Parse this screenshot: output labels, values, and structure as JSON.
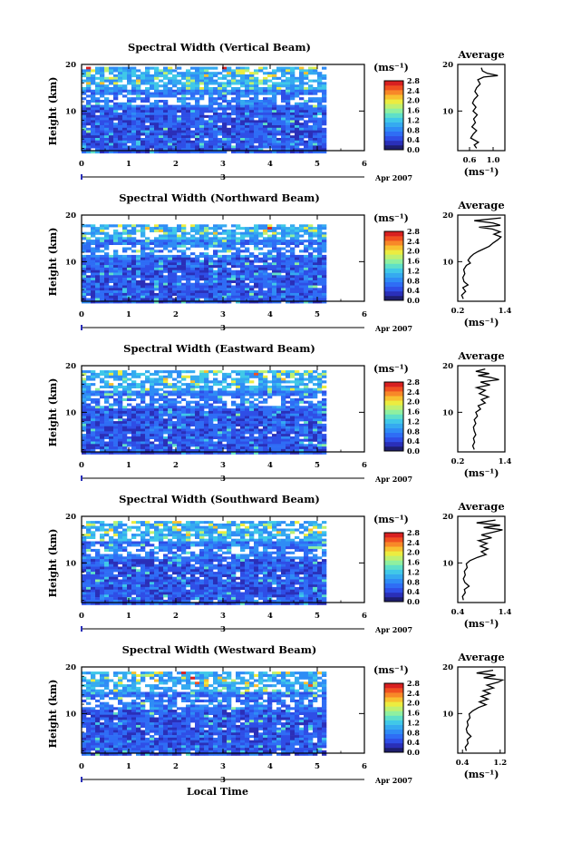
{
  "chart_data": [
    {
      "type": "heatmap",
      "title": "Spectral Width (Vertical Beam)",
      "ylabel": "Height (km)",
      "xlim": [
        0,
        6
      ],
      "ylim": [
        1.5,
        20
      ],
      "xticks": [
        "0",
        "1",
        "2",
        "3",
        "4",
        "5",
        "6"
      ],
      "yticks": [
        "10",
        "20"
      ],
      "date_axis": {
        "ticks": [
          "3"
        ],
        "label": "Apr 2007"
      },
      "colorbar": {
        "unit": "(ms⁻¹)",
        "labels": [
          "2.8",
          "2.4",
          "2.0",
          "1.6",
          "1.2",
          "0.8",
          "0.4",
          "0.0"
        ],
        "range": [
          0,
          2.8
        ]
      },
      "data_extent": {
        "x": [
          0,
          5.1
        ],
        "y": [
          1.5,
          19.5
        ]
      },
      "average": {
        "title": "Average",
        "unit": "(ms⁻¹)",
        "xticks": [
          "0.6",
          "1.0"
        ],
        "xlim": [
          0.4,
          1.2
        ],
        "yticks": [
          "10",
          "20"
        ],
        "profile": [
          [
            0.72,
            2
          ],
          [
            0.68,
            2.7
          ],
          [
            0.75,
            3.3
          ],
          [
            0.62,
            4.2
          ],
          [
            0.66,
            5
          ],
          [
            0.72,
            5.8
          ],
          [
            0.64,
            6.6
          ],
          [
            0.7,
            7.5
          ],
          [
            0.67,
            8.3
          ],
          [
            0.73,
            9.2
          ],
          [
            0.66,
            10
          ],
          [
            0.71,
            10.8
          ],
          [
            0.65,
            11.7
          ],
          [
            0.68,
            12.5
          ],
          [
            0.74,
            13.3
          ],
          [
            0.69,
            14.2
          ],
          [
            0.72,
            15
          ],
          [
            0.78,
            15.8
          ],
          [
            0.74,
            16.7
          ],
          [
            0.84,
            17.3
          ],
          [
            1.08,
            17.6
          ],
          [
            0.9,
            18.1
          ],
          [
            0.82,
            18.6
          ],
          [
            0.8,
            19.3
          ]
        ]
      }
    },
    {
      "type": "heatmap",
      "title": "Spectral Width (Northward Beam)",
      "ylabel": "Height (km)",
      "xlim": [
        0,
        6
      ],
      "ylim": [
        1.5,
        20
      ],
      "xticks": [
        "0",
        "1",
        "2",
        "3",
        "4",
        "5",
        "6"
      ],
      "yticks": [
        "10",
        "20"
      ],
      "date_axis": {
        "ticks": [
          "3"
        ],
        "label": "Apr 2007"
      },
      "colorbar": {
        "unit": "(ms⁻¹)",
        "labels": [
          "2.8",
          "2.4",
          "2.0",
          "1.6",
          "1.2",
          "0.8",
          "0.4",
          "0.0"
        ],
        "range": [
          0,
          2.8
        ]
      },
      "data_extent": {
        "x": [
          0,
          5.1
        ],
        "y": [
          1.5,
          18
        ]
      },
      "average": {
        "title": "Average",
        "unit": "(ms⁻¹)",
        "xticks": [
          "0.2",
          "1.4"
        ],
        "xlim": [
          0.2,
          1.4
        ],
        "yticks": [
          "10",
          "20"
        ],
        "profile": [
          [
            0.34,
            2
          ],
          [
            0.3,
            2.8
          ],
          [
            0.4,
            3.6
          ],
          [
            0.33,
            4.4
          ],
          [
            0.46,
            5
          ],
          [
            0.36,
            5.7
          ],
          [
            0.33,
            6.6
          ],
          [
            0.38,
            7.4
          ],
          [
            0.35,
            8.3
          ],
          [
            0.42,
            9.2
          ],
          [
            0.52,
            9.7
          ],
          [
            0.46,
            10.3
          ],
          [
            0.52,
            11
          ],
          [
            0.6,
            11.6
          ],
          [
            0.72,
            12.2
          ],
          [
            0.85,
            12.7
          ],
          [
            1.0,
            13.3
          ],
          [
            1.1,
            14
          ],
          [
            1.22,
            14.7
          ],
          [
            1.3,
            15.3
          ],
          [
            1.12,
            15.9
          ],
          [
            1.28,
            16.4
          ],
          [
            1.08,
            17
          ],
          [
            0.74,
            17.4
          ],
          [
            1.28,
            17.8
          ],
          [
            1.1,
            18.3
          ],
          [
            0.62,
            18.8
          ],
          [
            1.3,
            19.4
          ]
        ]
      }
    },
    {
      "type": "heatmap",
      "title": "Spectral Width (Eastward Beam)",
      "ylabel": "Height (km)",
      "xlim": [
        0,
        6
      ],
      "ylim": [
        1.5,
        20
      ],
      "xticks": [
        "0",
        "1",
        "2",
        "3",
        "4",
        "5",
        "6"
      ],
      "yticks": [
        "10",
        "20"
      ],
      "date_axis": {
        "ticks": [
          "3"
        ],
        "label": "Apr 2007"
      },
      "colorbar": {
        "unit": "(ms⁻¹)",
        "labels": [
          "2.8",
          "2.4",
          "2.0",
          "1.6",
          "1.2",
          "0.8",
          "0.4",
          "0.0"
        ],
        "range": [
          0,
          2.8
        ]
      },
      "data_extent": {
        "x": [
          0,
          5.1
        ],
        "y": [
          1.5,
          19
        ]
      },
      "average": {
        "title": "Average",
        "unit": "(ms⁻¹)",
        "xticks": [
          "0.2",
          "1.4"
        ],
        "xlim": [
          0.2,
          1.4
        ],
        "yticks": [
          "10",
          "20"
        ],
        "profile": [
          [
            0.62,
            2
          ],
          [
            0.58,
            2.8
          ],
          [
            0.63,
            3.6
          ],
          [
            0.6,
            4.4
          ],
          [
            0.66,
            5.2
          ],
          [
            0.62,
            6
          ],
          [
            0.6,
            6.8
          ],
          [
            0.66,
            7.6
          ],
          [
            0.62,
            8.4
          ],
          [
            0.7,
            9.2
          ],
          [
            0.66,
            10
          ],
          [
            0.78,
            10.7
          ],
          [
            0.72,
            11.4
          ],
          [
            0.9,
            12
          ],
          [
            0.8,
            12.7
          ],
          [
            0.98,
            13.3
          ],
          [
            0.75,
            14
          ],
          [
            0.9,
            14.7
          ],
          [
            0.68,
            15.3
          ],
          [
            1.02,
            15.9
          ],
          [
            0.78,
            16.5
          ],
          [
            1.25,
            17
          ],
          [
            1.02,
            17.5
          ],
          [
            0.72,
            17.9
          ],
          [
            1.0,
            18.3
          ],
          [
            0.66,
            18.8
          ],
          [
            0.9,
            19.3
          ]
        ]
      }
    },
    {
      "type": "heatmap",
      "title": "Spectral Width (Southward Beam)",
      "ylabel": "Height (km)",
      "xlim": [
        0,
        6
      ],
      "ylim": [
        1.5,
        20
      ],
      "xticks": [
        "0",
        "1",
        "2",
        "3",
        "4",
        "5",
        "6"
      ],
      "yticks": [
        "10",
        "20"
      ],
      "date_axis": {
        "ticks": [
          "3"
        ],
        "label": "Apr 2007"
      },
      "colorbar": {
        "unit": "(ms⁻¹)",
        "labels": [
          "2.8",
          "2.4",
          "2.0",
          "1.6",
          "1.2",
          "0.8",
          "0.4",
          "0.0"
        ],
        "range": [
          0,
          2.8
        ]
      },
      "data_extent": {
        "x": [
          0,
          5.1
        ],
        "y": [
          1.5,
          19
        ]
      },
      "average": {
        "title": "Average",
        "unit": "(ms⁻¹)",
        "xticks": [
          "0.4",
          "1.4"
        ],
        "xlim": [
          0.4,
          1.4
        ],
        "yticks": [
          "10",
          "20"
        ],
        "profile": [
          [
            0.52,
            2
          ],
          [
            0.5,
            2.8
          ],
          [
            0.56,
            3.6
          ],
          [
            0.54,
            4.3
          ],
          [
            0.64,
            5
          ],
          [
            0.55,
            5.8
          ],
          [
            0.52,
            6.6
          ],
          [
            0.56,
            7.4
          ],
          [
            0.54,
            8.2
          ],
          [
            0.6,
            9
          ],
          [
            0.58,
            9.8
          ],
          [
            0.66,
            10.5
          ],
          [
            0.82,
            11.2
          ],
          [
            1.0,
            11.8
          ],
          [
            0.9,
            12.4
          ],
          [
            1.04,
            13
          ],
          [
            0.88,
            13.6
          ],
          [
            1.02,
            14.2
          ],
          [
            0.84,
            14.8
          ],
          [
            1.12,
            15.4
          ],
          [
            0.9,
            16
          ],
          [
            1.15,
            16.6
          ],
          [
            1.35,
            17.1
          ],
          [
            0.95,
            17.6
          ],
          [
            1.3,
            18.1
          ],
          [
            0.8,
            18.6
          ],
          [
            1.2,
            19.2
          ]
        ]
      }
    },
    {
      "type": "heatmap",
      "title": "Spectral Width (Westward Beam)",
      "ylabel": "Height (km)",
      "xlabel": "Local Time",
      "xlim": [
        0,
        6
      ],
      "ylim": [
        1.5,
        20
      ],
      "xticks": [
        "0",
        "1",
        "2",
        "3",
        "4",
        "5",
        "6"
      ],
      "yticks": [
        "10",
        "20"
      ],
      "date_axis": {
        "ticks": [
          "3"
        ],
        "label": "Apr 2007"
      },
      "colorbar": {
        "unit": "(ms⁻¹)",
        "labels": [
          "2.8",
          "2.4",
          "2.0",
          "1.6",
          "1.2",
          "0.8",
          "0.4",
          "0.0"
        ],
        "range": [
          0,
          2.8
        ]
      },
      "data_extent": {
        "x": [
          0,
          5.1
        ],
        "y": [
          1.5,
          19
        ]
      },
      "average": {
        "title": "Average",
        "unit": "(ms⁻¹)",
        "xticks": [
          "0.4",
          "1.2"
        ],
        "xlim": [
          0.3,
          1.3
        ],
        "yticks": [
          "10",
          "20"
        ],
        "profile": [
          [
            0.48,
            2
          ],
          [
            0.46,
            2.8
          ],
          [
            0.52,
            3.6
          ],
          [
            0.5,
            4.4
          ],
          [
            0.58,
            5.1
          ],
          [
            0.5,
            5.9
          ],
          [
            0.48,
            6.7
          ],
          [
            0.52,
            7.5
          ],
          [
            0.5,
            8.3
          ],
          [
            0.56,
            9.1
          ],
          [
            0.54,
            9.9
          ],
          [
            0.62,
            10.6
          ],
          [
            0.74,
            11.3
          ],
          [
            0.9,
            11.9
          ],
          [
            0.76,
            12.5
          ],
          [
            0.94,
            13.1
          ],
          [
            0.8,
            13.7
          ],
          [
            0.98,
            14.3
          ],
          [
            0.84,
            14.9
          ],
          [
            1.06,
            15.5
          ],
          [
            0.92,
            16.1
          ],
          [
            1.15,
            16.7
          ],
          [
            1.25,
            17.2
          ],
          [
            0.85,
            17.7
          ],
          [
            1.1,
            18.2
          ],
          [
            0.7,
            18.7
          ],
          [
            1.05,
            19.3
          ]
        ]
      }
    }
  ]
}
